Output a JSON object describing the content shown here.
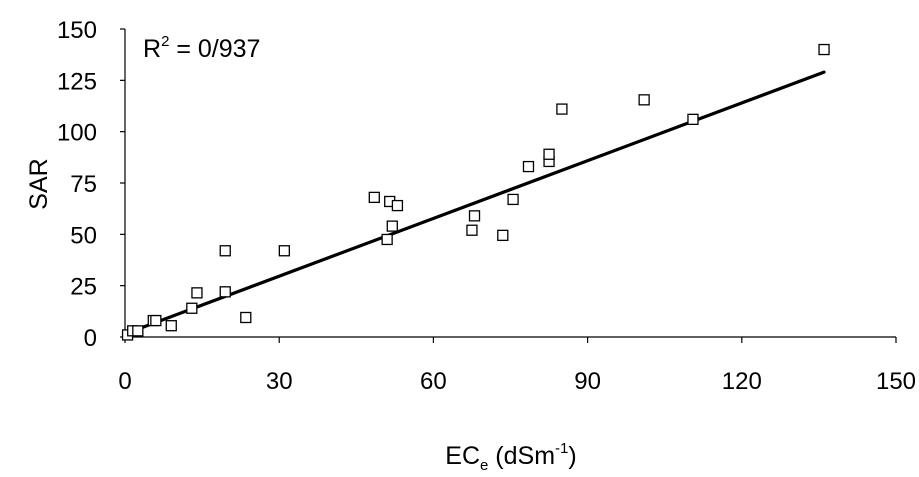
{
  "chart_data": {
    "type": "scatter",
    "title": "",
    "xlabel": {
      "main": "EC",
      "sub": "e",
      "unit_prefix": " (dSm",
      "unit_sup": "-1",
      "unit_suffix": ")"
    },
    "ylabel": "SAR",
    "xlim": [
      0,
      150
    ],
    "ylim": [
      0,
      150
    ],
    "xticks": [
      0,
      30,
      60,
      90,
      120,
      150
    ],
    "yticks": [
      0,
      25,
      50,
      75,
      100,
      125,
      150
    ],
    "grid": false,
    "legend": "none",
    "annotation": {
      "prefix": "R",
      "sup": "2",
      "suffix": " = 0/937"
    },
    "series": [
      {
        "marker": "open-square",
        "x": [
          0.5,
          1.5,
          2.5,
          5.5,
          6,
          9,
          13,
          14,
          19.5,
          19.5,
          23.5,
          31,
          48.5,
          51,
          51.5,
          52,
          53,
          67.5,
          68,
          73.5,
          75.5,
          78.5,
          82.5,
          82.5,
          85,
          101,
          110.5,
          136
        ],
        "y": [
          1,
          3,
          3,
          8,
          8,
          5.5,
          14,
          21.5,
          22,
          42,
          9.5,
          42,
          68,
          47.5,
          66,
          54,
          64,
          52,
          59,
          49.5,
          67,
          83,
          85.5,
          89,
          111,
          115.5,
          106,
          140
        ]
      }
    ],
    "trendline": {
      "type": "linear",
      "x": [
        0,
        136
      ],
      "y": [
        1.5,
        129
      ]
    }
  },
  "colors": {
    "axis": "#000000",
    "marker": "#000000",
    "trendline": "#000000"
  }
}
